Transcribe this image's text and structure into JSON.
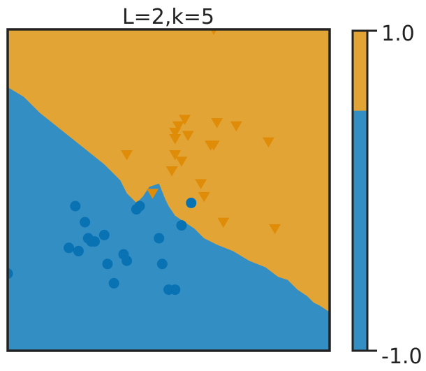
{
  "chart_data": {
    "type": "scatter",
    "title": "L=2,k=5",
    "xlabel": "",
    "ylabel": "",
    "xlim": [
      0,
      1
    ],
    "ylim": [
      0,
      1
    ],
    "grid": false,
    "colors": {
      "class_a": "#338ec4",
      "class_b": "#e3a436",
      "marker_a": "#0872b3",
      "marker_b": "#df8c08"
    },
    "decision_boundary": {
      "x": [
        0.0,
        0.05,
        0.1,
        0.15,
        0.2,
        0.25,
        0.3,
        0.33,
        0.35,
        0.37,
        0.4,
        0.42,
        0.44,
        0.47,
        0.49,
        0.5,
        0.52,
        0.55,
        0.58,
        0.61,
        0.65,
        0.7,
        0.75,
        0.8,
        0.84,
        0.87,
        0.9,
        0.93,
        0.95,
        0.97,
        1.0
      ],
      "y": [
        0.82,
        0.79,
        0.74,
        0.7,
        0.66,
        0.62,
        0.58,
        0.55,
        0.53,
        0.49,
        0.46,
        0.48,
        0.51,
        0.52,
        0.47,
        0.45,
        0.42,
        0.4,
        0.38,
        0.35,
        0.33,
        0.31,
        0.28,
        0.26,
        0.23,
        0.22,
        0.19,
        0.17,
        0.15,
        0.14,
        0.12
      ]
    },
    "series": [
      {
        "marker": "circle",
        "class": -1,
        "points": [
          [
            0.0,
            0.24
          ],
          [
            0.21,
            0.45
          ],
          [
            0.24,
            0.4
          ],
          [
            0.25,
            0.35
          ],
          [
            0.26,
            0.34
          ],
          [
            0.27,
            0.34
          ],
          [
            0.19,
            0.32
          ],
          [
            0.22,
            0.31
          ],
          [
            0.3,
            0.36
          ],
          [
            0.31,
            0.27
          ],
          [
            0.33,
            0.21
          ],
          [
            0.36,
            0.3
          ],
          [
            0.37,
            0.28
          ],
          [
            0.4,
            0.44
          ],
          [
            0.41,
            0.45
          ],
          [
            0.47,
            0.35
          ],
          [
            0.48,
            0.27
          ],
          [
            0.5,
            0.19
          ],
          [
            0.52,
            0.19
          ],
          [
            0.54,
            0.39
          ],
          [
            0.57,
            0.46
          ]
        ]
      },
      {
        "marker": "triangle-down",
        "class": 1,
        "points": [
          [
            0.64,
            1.0
          ],
          [
            0.37,
            0.61
          ],
          [
            0.45,
            0.49
          ],
          [
            0.51,
            0.56
          ],
          [
            0.52,
            0.61
          ],
          [
            0.52,
            0.66
          ],
          [
            0.52,
            0.68
          ],
          [
            0.53,
            0.7
          ],
          [
            0.54,
            0.59
          ],
          [
            0.55,
            0.72
          ],
          [
            0.56,
            0.67
          ],
          [
            0.6,
            0.52
          ],
          [
            0.61,
            0.48
          ],
          [
            0.63,
            0.64
          ],
          [
            0.64,
            0.64
          ],
          [
            0.65,
            0.71
          ],
          [
            0.67,
            0.4
          ],
          [
            0.71,
            0.7
          ],
          [
            0.81,
            0.65
          ],
          [
            0.83,
            0.38
          ]
        ]
      }
    ],
    "colorbar": {
      "min": -1.0,
      "max": 1.0,
      "split": 0.5,
      "tick_labels": [
        "1.0",
        "-1.0"
      ]
    }
  }
}
